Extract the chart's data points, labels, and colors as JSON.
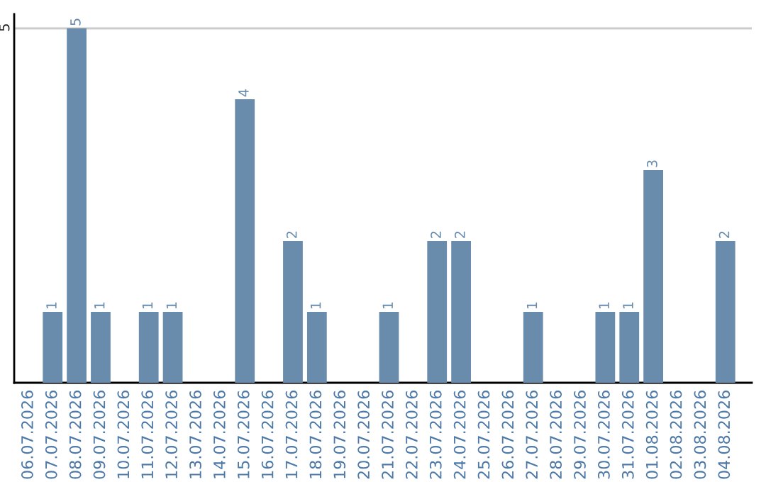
{
  "chart_data": {
    "type": "bar",
    "categories": [
      "06.07.2026",
      "07.07.2026",
      "08.07.2026",
      "09.07.2026",
      "10.07.2026",
      "11.07.2026",
      "12.07.2026",
      "13.07.2026",
      "14.07.2026",
      "15.07.2026",
      "16.07.2026",
      "17.07.2026",
      "18.07.2026",
      "19.07.2026",
      "20.07.2026",
      "21.07.2026",
      "22.07.2026",
      "23.07.2026",
      "24.07.2026",
      "25.07.2026",
      "26.07.2026",
      "27.07.2026",
      "28.07.2026",
      "29.07.2026",
      "30.07.2026",
      "31.07.2026",
      "01.08.2026",
      "02.08.2026",
      "03.08.2026",
      "04.08.2026"
    ],
    "values": [
      0,
      1,
      5,
      1,
      0,
      1,
      1,
      0,
      0,
      4,
      0,
      2,
      1,
      0,
      0,
      1,
      0,
      2,
      2,
      0,
      0,
      1,
      0,
      0,
      1,
      1,
      3,
      0,
      0,
      2
    ],
    "value_labels": [
      null,
      "1",
      "5",
      "1",
      null,
      "1",
      "1",
      null,
      null,
      "4",
      null,
      "2",
      "1",
      null,
      null,
      "1",
      null,
      "2",
      "2",
      null,
      null,
      "1",
      null,
      null,
      "1",
      "1",
      "3",
      null,
      null,
      "2"
    ],
    "color": "#6a8cac",
    "ylim": [
      0,
      5.2
    ],
    "yticks": [
      5
    ],
    "grid": "y"
  }
}
